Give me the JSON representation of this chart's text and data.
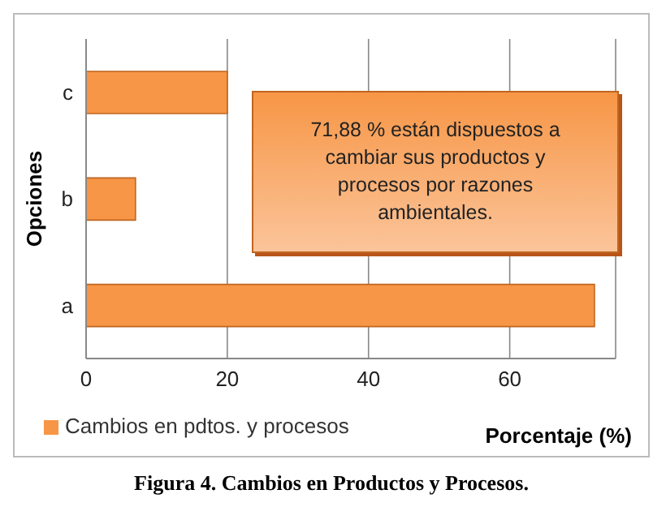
{
  "chart_data": {
    "type": "bar",
    "orientation": "horizontal",
    "xlabel": "Porcentaje (%)",
    "ylabel": "Opciones",
    "categories": [
      "c",
      "b",
      "a"
    ],
    "series": [
      {
        "name": "Cambios en pdtos. y procesos",
        "color": "#f79646",
        "values": [
          20,
          7,
          72
        ]
      }
    ],
    "xlim": [
      0,
      75
    ],
    "xticks": [
      0,
      20,
      40,
      60
    ],
    "grid": "x",
    "legend": "bottom left",
    "annotations": [
      "71,88 % están dispuestos a cambiar sus productos y procesos por razones ambientales.",
      "Figura 4. Cambios en Productos y Procesos."
    ]
  }
}
